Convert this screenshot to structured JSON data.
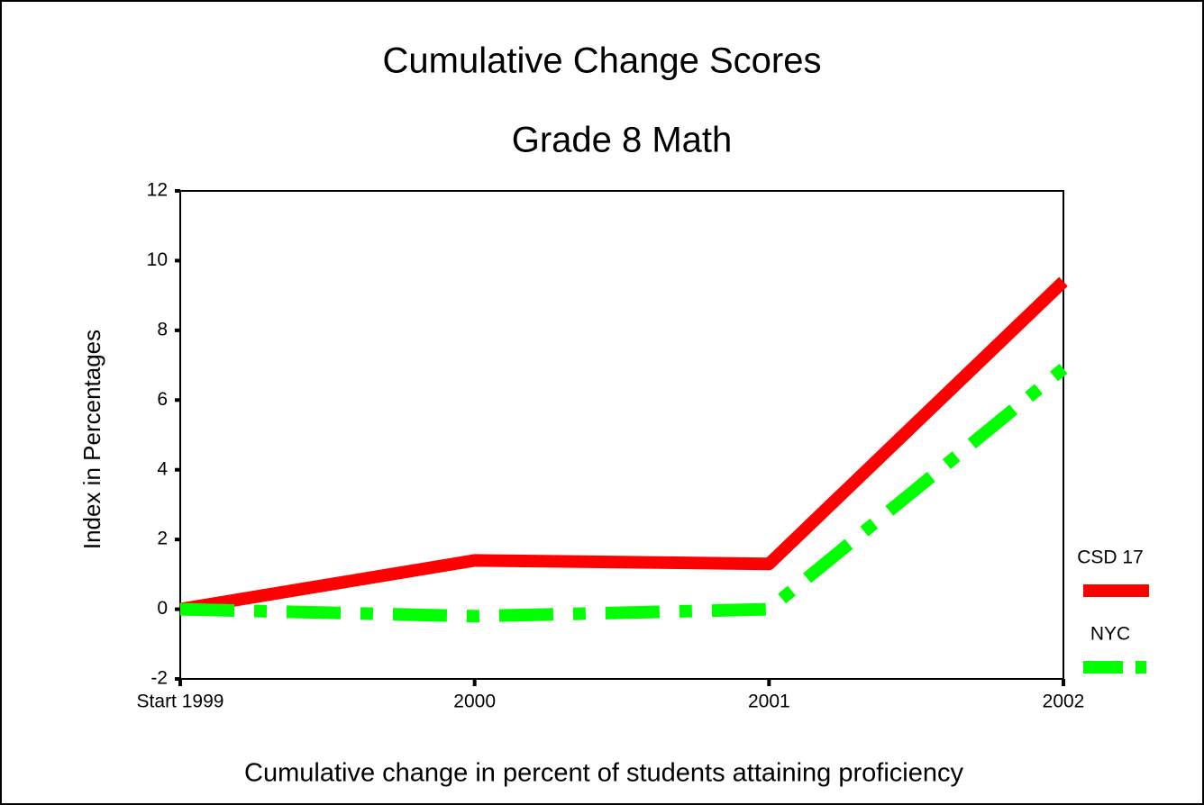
{
  "chart_data": {
    "type": "line",
    "title": "Cumulative Change Scores",
    "subtitle": "Grade 8 Math",
    "x_label": "Cumulative change in percent of students attaining proficiency",
    "y_label": "Index in Percentages",
    "categories": [
      "Start 1999",
      "2000",
      "2001",
      "2002"
    ],
    "series": [
      {
        "name": "CSD 17",
        "color": "#ff0000",
        "style": "solid",
        "values": [
          0,
          1.4,
          1.3,
          9.4
        ]
      },
      {
        "name": "NYC",
        "color": "#00ff00",
        "style": "dashdot",
        "values": [
          0,
          -0.2,
          0,
          6.9
        ]
      }
    ],
    "ylim": [
      -2,
      12
    ],
    "yticks": [
      -2,
      0,
      2,
      4,
      6,
      8,
      10,
      12
    ],
    "grid": false,
    "legend": "right"
  }
}
